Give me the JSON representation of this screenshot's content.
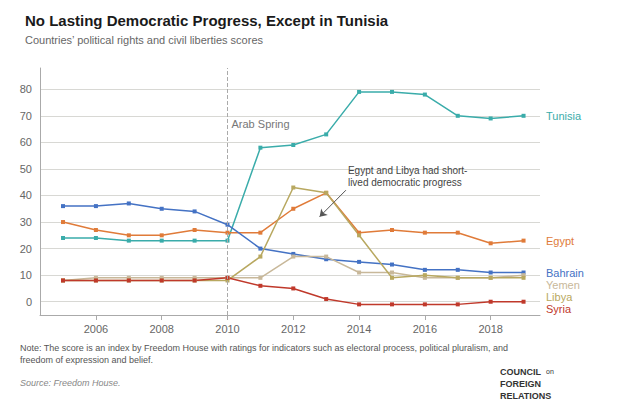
{
  "chart_data": {
    "type": "line",
    "title": "No Lasting Democratic Progress, Except in Tunisia",
    "subtitle": "Countries’ political rights and civil liberties scores",
    "note": "Note: The score is an index by Freedom House with ratings for indicators such as electoral process, political pluralism, and\nfreedom of expression and belief.",
    "source": "Source: Freedom House.",
    "logo": [
      "COUNCIL",
      "on",
      "FOREIGN",
      "RELATIONS"
    ],
    "x": [
      2005,
      2006,
      2007,
      2008,
      2009,
      2010,
      2011,
      2012,
      2013,
      2014,
      2015,
      2016,
      2017,
      2018,
      2019
    ],
    "series": [
      {
        "name": "Tunisia",
        "color": "#3aacaa",
        "values": [
          24,
          24,
          23,
          23,
          23,
          23,
          58,
          59,
          63,
          79,
          79,
          78,
          70,
          69,
          70
        ]
      },
      {
        "name": "Egypt",
        "color": "#e07b39",
        "values": [
          30,
          27,
          25,
          25,
          27,
          26,
          26,
          35,
          41,
          26,
          27,
          26,
          26,
          22,
          23
        ]
      },
      {
        "name": "Bahrain",
        "color": "#4472c4",
        "values": [
          36,
          36,
          37,
          35,
          34,
          29,
          20,
          18,
          16,
          15,
          14,
          12,
          12,
          11,
          11
        ]
      },
      {
        "name": "Yemen",
        "color": "#c8b89a",
        "values": [
          8,
          9,
          9,
          9,
          9,
          9,
          9,
          17,
          17,
          11,
          11,
          9,
          9,
          9,
          10
        ]
      },
      {
        "name": "Libya",
        "color": "#b8a860",
        "values": [
          8,
          8,
          8,
          8,
          8,
          8,
          17,
          43,
          41,
          25,
          9,
          10,
          9,
          9,
          9
        ]
      },
      {
        "name": "Syria",
        "color": "#c0392b",
        "values": [
          8,
          8,
          8,
          8,
          8,
          9,
          6,
          5,
          1,
          -1,
          -1,
          -1,
          -1,
          0,
          0
        ]
      }
    ],
    "annotations": [
      {
        "text": "Arab Spring",
        "x": 2010,
        "y": 69,
        "line_style": "dashed"
      },
      {
        "text": "Egypt and Libya had short-\nlived democratic progress",
        "x": 2013.6,
        "y": 42,
        "arrow_x": 2012.8,
        "arrow_y": 32
      }
    ],
    "xlim": [
      2004.3,
      2019.5
    ],
    "xticks": [
      2006,
      2008,
      2010,
      2012,
      2014,
      2016,
      2018
    ],
    "ylim": [
      -5,
      88
    ],
    "yticks": [
      0,
      10,
      20,
      30,
      40,
      50,
      60,
      70,
      80
    ],
    "grid": true,
    "marker": "square"
  }
}
